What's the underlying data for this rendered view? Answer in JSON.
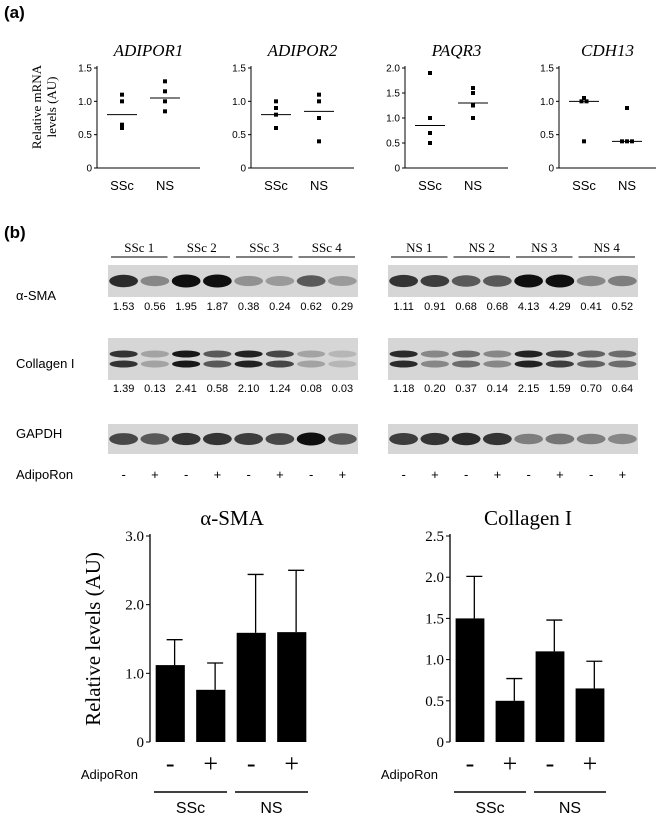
{
  "panel_a": {
    "label": "(a)",
    "ylabel_line1": "Relative mRNA",
    "ylabel_line2": "levels (AU)",
    "group_labels": [
      "SSc",
      "NS"
    ]
  },
  "panel_b": {
    "label": "(b)",
    "ssc_lanes": [
      "SSc 1",
      "SSc 2",
      "SSc 3",
      "SSc 4"
    ],
    "ns_lanes": [
      "NS 1",
      "NS 2",
      "NS 3",
      "NS 4"
    ],
    "rows": [
      {
        "name": "α-SMA",
        "ssc_values": [
          "1.53",
          "0.56",
          "1.95",
          "1.87",
          "0.38",
          "0.24",
          "0.62",
          "0.29"
        ],
        "ns_values": [
          "1.11",
          "0.91",
          "0.68",
          "0.68",
          "4.13",
          "4.29",
          "0.41",
          "0.52"
        ]
      },
      {
        "name": "Collagen I",
        "ssc_values": [
          "1.39",
          "0.13",
          "2.41",
          "0.58",
          "2.10",
          "1.24",
          "0.08",
          "0.03"
        ],
        "ns_values": [
          "1.18",
          "0.20",
          "0.37",
          "0.14",
          "2.15",
          "1.59",
          "0.70",
          "0.64"
        ]
      },
      {
        "name": "GAPDH",
        "ssc_values": [],
        "ns_values": []
      }
    ],
    "treatment_label": "AdipoRon",
    "treatment_signs": [
      "-",
      "+",
      "-",
      "+",
      "-",
      "+",
      "-",
      "+"
    ]
  },
  "chart_data": [
    {
      "type": "scatter",
      "title": "ADIPOR1",
      "ylim": [
        0,
        1.5
      ],
      "yticks": [
        "0",
        "0.5",
        "1.0",
        "1.5"
      ],
      "categories": [
        "SSc",
        "NS"
      ],
      "points": {
        "SSc": [
          1.1,
          1.0,
          0.65,
          0.6
        ],
        "NS": [
          1.3,
          1.15,
          1.0,
          0.85
        ]
      },
      "means": {
        "SSc": 0.8,
        "NS": 1.05
      }
    },
    {
      "type": "scatter",
      "title": "ADIPOR2",
      "ylim": [
        0,
        1.5
      ],
      "yticks": [
        "0",
        "0.5",
        "1.0",
        "1.5"
      ],
      "categories": [
        "SSc",
        "NS"
      ],
      "points": {
        "SSc": [
          1.0,
          0.9,
          0.8,
          0.6
        ],
        "NS": [
          1.1,
          1.0,
          0.75,
          0.4
        ]
      },
      "means": {
        "SSc": 0.8,
        "NS": 0.85
      }
    },
    {
      "type": "scatter",
      "title": "PAQR3",
      "ylim": [
        0,
        2.0
      ],
      "yticks": [
        "0",
        "0.5",
        "1.0",
        "1.5",
        "2.0"
      ],
      "categories": [
        "SSc",
        "NS"
      ],
      "points": {
        "SSc": [
          1.9,
          1.0,
          0.7,
          0.5
        ],
        "NS": [
          1.6,
          1.5,
          1.25,
          1.0
        ]
      },
      "means": {
        "SSc": 0.85,
        "NS": 1.3
      }
    },
    {
      "type": "scatter",
      "title": "CDH13",
      "ylim": [
        0,
        1.5
      ],
      "yticks": [
        "0",
        "0.5",
        "1.0",
        "1.5"
      ],
      "categories": [
        "SSc",
        "NS"
      ],
      "points": {
        "SSc": [
          1.05,
          1.0,
          1.0,
          0.4
        ],
        "NS": [
          0.9,
          0.4,
          0.4,
          0.4
        ]
      },
      "means": {
        "SSc": 1.0,
        "NS": 0.4
      }
    },
    {
      "type": "bar",
      "title": "α-SMA",
      "ylabel": "Relative levels (AU)",
      "ylim": [
        0,
        3.0
      ],
      "yticks": [
        "0",
        "1.0",
        "2.0",
        "3.0"
      ],
      "signs": [
        "-",
        "+",
        "-",
        "+"
      ],
      "groups": [
        "SSc",
        "NS"
      ],
      "treatment_label": "AdipoRon",
      "values": [
        1.12,
        0.76,
        1.59,
        1.6
      ],
      "errors": [
        0.37,
        0.39,
        0.85,
        0.9
      ]
    },
    {
      "type": "bar",
      "title": "Collagen  I",
      "ylim": [
        0,
        2.5
      ],
      "yticks": [
        "0",
        "0.5",
        "1.0",
        "1.5",
        "2.0",
        "2.5"
      ],
      "signs": [
        "-",
        "+",
        "-",
        "+"
      ],
      "groups": [
        "SSc",
        "NS"
      ],
      "treatment_label": "AdipoRon",
      "values": [
        1.5,
        0.5,
        1.1,
        0.65
      ],
      "errors": [
        0.51,
        0.27,
        0.38,
        0.33
      ]
    }
  ]
}
